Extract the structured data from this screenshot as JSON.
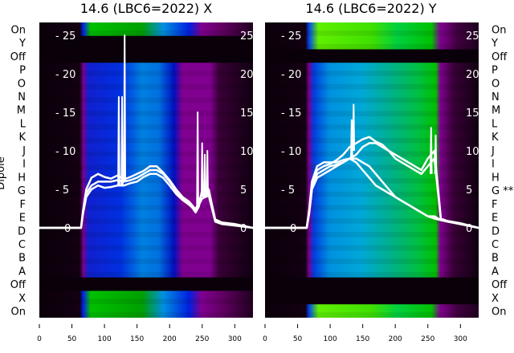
{
  "chart_data": [
    {
      "type": "heatmap",
      "title": "14.6 (LBC6=2022) X",
      "ylabel": "Dipole",
      "row_labels": [
        "On",
        "Y",
        "Off",
        "P",
        "O",
        "N",
        "M",
        "L",
        "K",
        "J",
        "I",
        "H",
        "G",
        "F",
        "E",
        "D",
        "C",
        "B",
        "A",
        "Off",
        "X",
        "On"
      ],
      "row_types": [
        "on",
        "off",
        "off",
        "beam",
        "beam",
        "beam",
        "beam",
        "beam",
        "beam",
        "beam",
        "beam",
        "beam",
        "beam",
        "beam",
        "beam",
        "beam",
        "beam",
        "beam",
        "beam",
        "off",
        "on",
        "on"
      ],
      "xticks": [
        0,
        50,
        100,
        150,
        200,
        250,
        300
      ],
      "xlim": [
        0,
        328
      ],
      "yticks": [
        0,
        5,
        10,
        15,
        20,
        25
      ],
      "ylim": [
        -11.5,
        26.5
      ],
      "series": [
        {
          "name": "trace-1",
          "x": [
            0,
            64,
            67,
            72,
            80,
            90,
            100,
            110,
            120,
            130,
            140,
            150,
            160,
            170,
            180,
            190,
            200,
            210,
            220,
            230,
            240,
            245,
            250,
            255,
            260,
            265,
            270,
            280,
            300,
            328
          ],
          "y": [
            0,
            0,
            2,
            4.5,
            5.5,
            6,
            6,
            6,
            6.2,
            6,
            6.2,
            6.5,
            7,
            7.5,
            7.5,
            7,
            6,
            4.8,
            3.8,
            3.2,
            2,
            2.8,
            5,
            4,
            5,
            3,
            1,
            0.6,
            0.4,
            0
          ]
        },
        {
          "name": "trace-2",
          "x": [
            0,
            64,
            67,
            72,
            80,
            90,
            100,
            110,
            120,
            130,
            140,
            150,
            160,
            170,
            180,
            190,
            200,
            210,
            220,
            230,
            240,
            250,
            260,
            270,
            280,
            300,
            328
          ],
          "y": [
            0,
            0,
            1.8,
            4,
            5,
            5.5,
            5.2,
            5.3,
            5.5,
            5.5,
            5.8,
            6,
            6.6,
            7,
            7,
            6.5,
            5.5,
            4.4,
            3.6,
            3,
            2.2,
            3.8,
            4.2,
            0.8,
            0.5,
            0.3,
            0
          ]
        },
        {
          "name": "trace-3",
          "x": [
            0,
            64,
            67,
            72,
            80,
            90,
            100,
            110,
            120,
            130,
            140,
            150,
            160,
            170,
            180,
            190,
            200,
            210,
            220,
            230,
            240,
            250,
            260,
            270,
            280,
            300,
            328
          ],
          "y": [
            0,
            0,
            2.2,
            5,
            6.5,
            7,
            6.6,
            6.4,
            6.8,
            6.3,
            6.6,
            7,
            7.4,
            8,
            8,
            7.2,
            6.2,
            5,
            4,
            3.4,
            2.4,
            4.5,
            4.8,
            1.1,
            0.7,
            0.5,
            0
          ]
        },
        {
          "name": "spike-122",
          "x": [
            121,
            122,
            123
          ],
          "y": [
            5.5,
            17,
            5.5
          ]
        },
        {
          "name": "spike-127",
          "x": [
            126,
            127,
            128
          ],
          "y": [
            5.5,
            17,
            5.5
          ]
        },
        {
          "name": "spike-131",
          "x": [
            130,
            131,
            132
          ],
          "y": [
            6,
            25,
            6
          ]
        },
        {
          "name": "spike-243",
          "x": [
            242,
            243,
            244
          ],
          "y": [
            3,
            15,
            3
          ]
        },
        {
          "name": "spike-250",
          "x": [
            249,
            250,
            251
          ],
          "y": [
            4,
            11,
            4
          ]
        },
        {
          "name": "spike-254",
          "x": [
            253,
            254,
            255
          ],
          "y": [
            4,
            9.5,
            4
          ]
        },
        {
          "name": "spike-258",
          "x": [
            257,
            258,
            259
          ],
          "y": [
            4,
            10,
            4
          ]
        }
      ]
    },
    {
      "type": "heatmap",
      "title": "14.6 (LBC6=2022) Y",
      "row_labels": [
        "On",
        "Y",
        "Off",
        "P",
        "O",
        "N",
        "M",
        "L",
        "K",
        "J",
        "I",
        "H",
        "G **",
        "F",
        "E",
        "D",
        "C",
        "B",
        "A",
        "Off",
        "X",
        "On"
      ],
      "row_types": [
        "on",
        "on",
        "off",
        "beam",
        "beam",
        "beam",
        "beam",
        "beam",
        "beam",
        "beam",
        "beam",
        "beam",
        "beam",
        "beam",
        "beam",
        "beam",
        "beam",
        "beam",
        "beam",
        "off",
        "off",
        "on"
      ],
      "xticks": [
        0,
        50,
        100,
        150,
        200,
        250,
        300
      ],
      "xlim": [
        0,
        328
      ],
      "yticks": [
        0,
        5,
        10,
        15,
        20,
        25
      ],
      "ylim": [
        -11.5,
        26.5
      ],
      "series": [
        {
          "name": "trace-1",
          "x": [
            0,
            64,
            68,
            72,
            80,
            90,
            100,
            110,
            120,
            130,
            140,
            150,
            160,
            170,
            180,
            190,
            200,
            210,
            220,
            230,
            240,
            250,
            260,
            270,
            280,
            300,
            328
          ],
          "y": [
            0,
            0,
            2,
            5,
            7,
            7.5,
            8,
            8.2,
            8.5,
            9,
            9.5,
            10.5,
            11,
            11,
            10.5,
            10,
            9,
            8.5,
            8,
            7.5,
            7,
            8,
            9,
            1,
            0.8,
            0.5,
            0
          ]
        },
        {
          "name": "trace-2",
          "x": [
            0,
            64,
            68,
            72,
            80,
            90,
            100,
            110,
            120,
            130,
            140,
            150,
            160,
            170,
            180,
            190,
            200,
            210,
            220,
            230,
            240,
            250,
            260,
            270,
            280,
            300,
            328
          ],
          "y": [
            0,
            0,
            2.2,
            5.5,
            7.5,
            8,
            8.3,
            8.8,
            9.5,
            10.5,
            11,
            11.5,
            11.8,
            11.2,
            10.8,
            10,
            9.5,
            9,
            8.5,
            8,
            7.5,
            9,
            10,
            1.2,
            0.9,
            0.6,
            0
          ]
        },
        {
          "name": "trace-3",
          "x": [
            0,
            64,
            68,
            72,
            80,
            90,
            100,
            110,
            120,
            130,
            140,
            150,
            160,
            170,
            180,
            190,
            200,
            210,
            220,
            230,
            240,
            250,
            260,
            270,
            328
          ],
          "y": [
            0,
            0,
            2.5,
            6,
            8,
            8.5,
            8.5,
            8.5,
            8.8,
            9,
            9,
            8.5,
            8,
            7,
            6,
            5,
            4,
            3.5,
            3,
            2.5,
            2,
            1.5,
            1.5,
            1,
            0
          ]
        },
        {
          "name": "trace-4",
          "x": [
            0,
            64,
            68,
            72,
            80,
            90,
            100,
            110,
            120,
            130,
            140,
            150,
            160,
            170,
            180,
            190,
            200,
            210,
            220,
            230,
            240,
            250,
            260,
            270,
            328
          ],
          "y": [
            0,
            0,
            2,
            5,
            6.5,
            7,
            7.5,
            8,
            8.5,
            9,
            8.5,
            7.5,
            6.5,
            5.5,
            5,
            4.5,
            4,
            3.5,
            3,
            2.5,
            2,
            1.5,
            1.2,
            1,
            0
          ]
        },
        {
          "name": "spike-133",
          "x": [
            132,
            133,
            134
          ],
          "y": [
            9,
            14,
            9
          ]
        },
        {
          "name": "spike-136",
          "x": [
            135,
            136,
            137
          ],
          "y": [
            10,
            16,
            10
          ]
        },
        {
          "name": "spike-255",
          "x": [
            254,
            255,
            256
          ],
          "y": [
            7,
            13,
            7
          ]
        },
        {
          "name": "spike-262",
          "x": [
            261,
            262,
            263
          ],
          "y": [
            7,
            12,
            7
          ]
        }
      ]
    }
  ],
  "colors": {
    "on_left": "#00b800",
    "on_right": "#60f000",
    "beam_blue": "#0020e0",
    "beam_cyan": "#0090e0",
    "purple": "#800090",
    "off": "#0a000a",
    "trace": "#ffffff"
  }
}
